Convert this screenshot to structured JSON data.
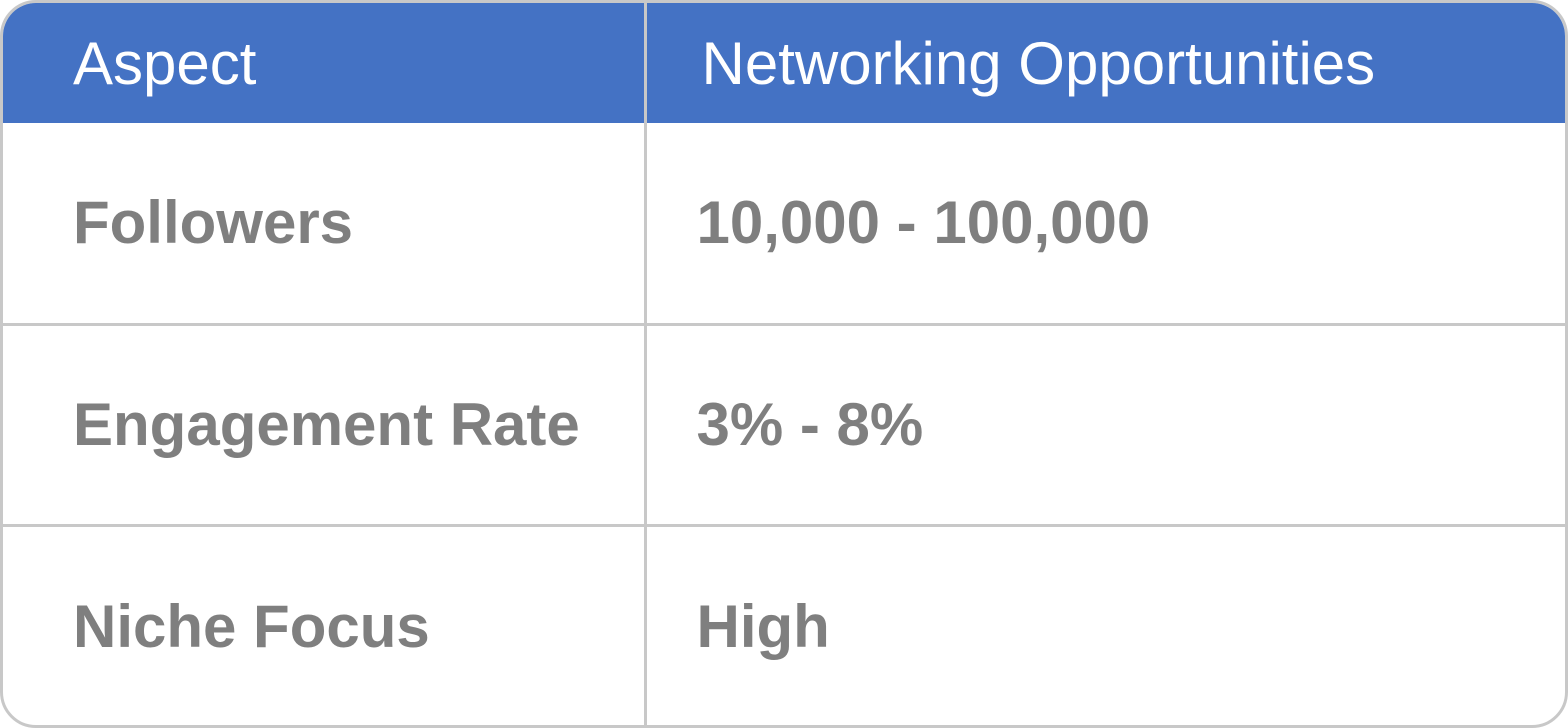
{
  "table": {
    "headers": [
      "Aspect",
      "Networking Opportunities"
    ],
    "rows": [
      [
        "Followers",
        "10,000 - 100,000"
      ],
      [
        "Engagement Rate",
        "3% - 8%"
      ],
      [
        "Niche Focus",
        "High"
      ]
    ]
  },
  "colors": {
    "header_bg": "#4472c4",
    "header_text": "#ffffff",
    "body_text": "#7f7f7f",
    "border": "#c8c8c8"
  }
}
